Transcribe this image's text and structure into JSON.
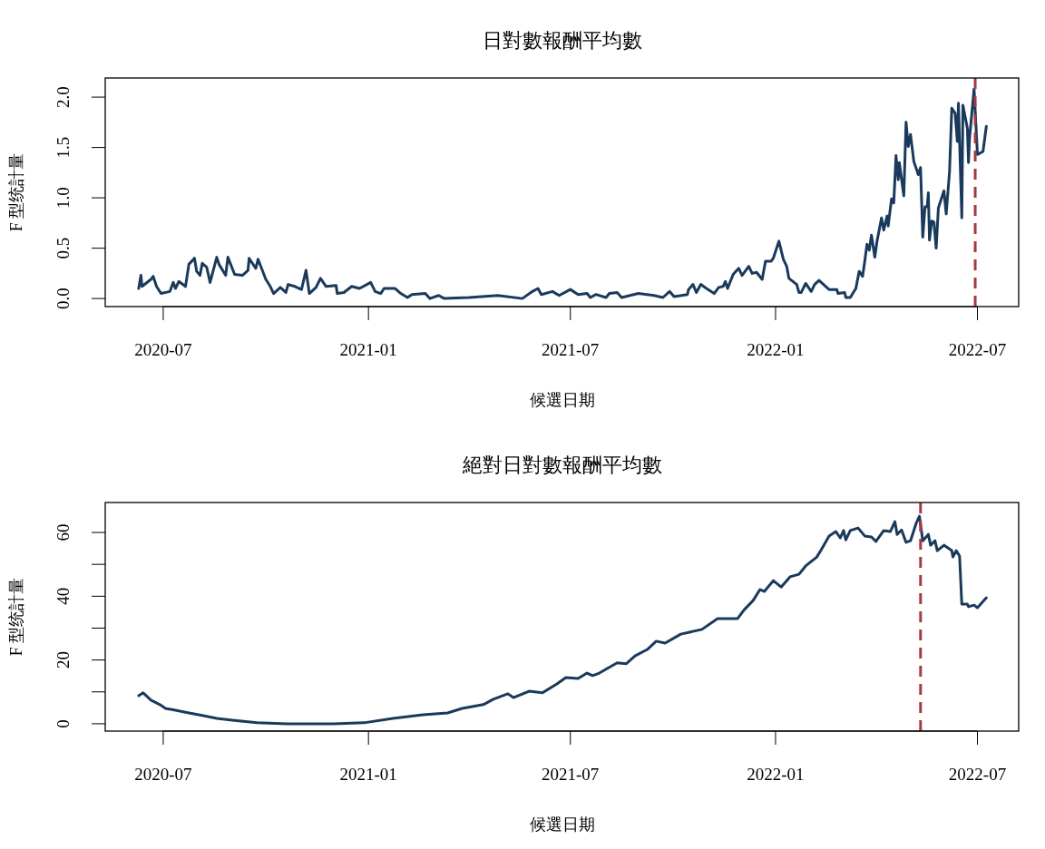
{
  "chart_data": [
    {
      "type": "line",
      "title": "日對數報酬平均數",
      "xlabel": "候選日期",
      "ylabel": "F 型统計量",
      "xlim": [
        "2020-05-10",
        "2022-08-07"
      ],
      "xticks": [
        "2020-07",
        "2021-01",
        "2021-07",
        "2022-01",
        "2022-07"
      ],
      "ylim": [
        -0.08,
        2.19
      ],
      "yticks": [
        {
          "value": 0,
          "label": "0.0"
        },
        {
          "value": 0.5,
          "label": "0.5"
        },
        {
          "value": 1,
          "label": "1.0"
        },
        {
          "value": 1.5,
          "label": "1.5"
        },
        {
          "value": 2,
          "label": "2.0"
        }
      ],
      "grid": false,
      "line_style": "solid",
      "marker": "none",
      "ref_lines": [
        {
          "axis": "x",
          "value": "2022-06-29",
          "color": "#a33a44",
          "line_style": "dashed"
        }
      ],
      "series": [
        {
          "color": "#1a3a5c",
          "x": [
            "2020-06-09",
            "2020-06-11",
            "2020-06-12",
            "2020-06-20",
            "2020-06-22",
            "2020-06-25",
            "2020-06-29",
            "2020-07-07",
            "2020-07-10",
            "2020-07-12",
            "2020-07-15",
            "2020-07-21",
            "2020-07-24",
            "2020-07-29",
            "2020-07-31",
            "2020-08-03",
            "2020-08-05",
            "2020-08-09",
            "2020-08-12",
            "2020-08-18",
            "2020-08-20",
            "2020-08-26",
            "2020-08-28",
            "2020-09-03",
            "2020-09-10",
            "2020-09-15",
            "2020-09-16",
            "2020-09-22",
            "2020-09-24",
            "2020-10-01",
            "2020-10-05",
            "2020-10-08",
            "2020-10-14",
            "2020-10-19",
            "2020-10-21",
            "2020-10-27",
            "2020-11-02",
            "2020-11-06",
            "2020-11-09",
            "2020-11-15",
            "2020-11-19",
            "2020-11-24",
            "2020-12-03",
            "2020-12-04",
            "2020-12-10",
            "2020-12-17",
            "2020-12-24",
            "2021-01-03",
            "2021-01-07",
            "2021-01-12",
            "2021-01-15",
            "2021-01-25",
            "2021-01-30",
            "2021-02-05",
            "2021-02-09",
            "2021-02-21",
            "2021-02-25",
            "2021-03-05",
            "2021-03-10",
            "2021-04-01",
            "2021-04-27",
            "2021-05-19",
            "2021-05-28",
            "2021-06-02",
            "2021-06-05",
            "2021-06-15",
            "2021-06-21",
            "2021-07-01",
            "2021-07-08",
            "2021-07-16",
            "2021-07-19",
            "2021-07-24",
            "2021-08-02",
            "2021-08-05",
            "2021-08-12",
            "2021-08-16",
            "2021-08-31",
            "2021-09-14",
            "2021-09-22",
            "2021-09-28",
            "2021-10-02",
            "2021-10-14",
            "2021-10-15",
            "2021-10-19",
            "2021-10-22",
            "2021-10-26",
            "2021-10-31",
            "2021-11-07",
            "2021-11-11",
            "2021-11-15",
            "2021-11-17",
            "2021-11-19",
            "2021-11-24",
            "2021-11-29",
            "2021-12-02",
            "2021-12-08",
            "2021-12-11",
            "2021-12-15",
            "2021-12-20",
            "2021-12-23",
            "2021-12-28",
            "2021-12-30",
            "2022-01-04",
            "2022-01-08",
            "2022-01-11",
            "2022-01-13",
            "2022-01-20",
            "2022-01-22",
            "2022-01-24",
            "2022-01-28",
            "2022-02-02",
            "2022-02-05",
            "2022-02-09",
            "2022-02-15",
            "2022-02-18",
            "2022-02-25",
            "2022-02-26",
            "2022-03-04",
            "2022-03-05",
            "2022-03-09",
            "2022-03-14",
            "2022-03-17",
            "2022-03-20",
            "2022-03-22",
            "2022-03-24",
            "2022-03-26",
            "2022-03-28",
            "2022-03-31",
            "2022-04-02",
            "2022-04-06",
            "2022-04-08",
            "2022-04-11",
            "2022-04-12",
            "2022-04-15",
            "2022-04-17",
            "2022-04-19",
            "2022-04-21",
            "2022-04-22",
            "2022-04-26",
            "2022-04-28",
            "2022-04-30",
            "2022-05-02",
            "2022-05-05",
            "2022-05-09",
            "2022-05-11",
            "2022-05-13",
            "2022-05-15",
            "2022-05-17",
            "2022-05-18",
            "2022-05-19",
            "2022-05-21",
            "2022-05-23",
            "2022-05-25",
            "2022-05-27",
            "2022-06-01",
            "2022-06-03",
            "2022-06-06",
            "2022-06-08",
            "2022-06-11",
            "2022-06-13",
            "2022-06-14",
            "2022-06-17",
            "2022-06-18",
            "2022-06-22",
            "2022-06-23",
            "2022-06-24",
            "2022-06-28",
            "2022-07-01",
            "2022-07-06",
            "2022-07-09"
          ],
          "values": [
            0.1,
            0.23,
            0.12,
            0.19,
            0.22,
            0.12,
            0.05,
            0.07,
            0.16,
            0.1,
            0.17,
            0.12,
            0.34,
            0.4,
            0.27,
            0.23,
            0.35,
            0.31,
            0.16,
            0.41,
            0.34,
            0.23,
            0.41,
            0.24,
            0.23,
            0.28,
            0.4,
            0.3,
            0.39,
            0.19,
            0.12,
            0.05,
            0.11,
            0.06,
            0.14,
            0.12,
            0.09,
            0.28,
            0.05,
            0.11,
            0.2,
            0.12,
            0.13,
            0.05,
            0.06,
            0.12,
            0.1,
            0.16,
            0.07,
            0.05,
            0.1,
            0.1,
            0.05,
            0.01,
            0.04,
            0.05,
            0.0,
            0.03,
            0.0,
            0.01,
            0.03,
            0.0,
            0.07,
            0.1,
            0.04,
            0.07,
            0.03,
            0.09,
            0.04,
            0.05,
            0.01,
            0.04,
            0.01,
            0.05,
            0.06,
            0.01,
            0.05,
            0.03,
            0.01,
            0.07,
            0.02,
            0.04,
            0.09,
            0.14,
            0.06,
            0.14,
            0.1,
            0.05,
            0.11,
            0.12,
            0.17,
            0.1,
            0.24,
            0.3,
            0.23,
            0.32,
            0.25,
            0.26,
            0.19,
            0.37,
            0.37,
            0.4,
            0.57,
            0.39,
            0.32,
            0.2,
            0.14,
            0.06,
            0.06,
            0.15,
            0.07,
            0.14,
            0.18,
            0.12,
            0.09,
            0.09,
            0.05,
            0.06,
            0.01,
            0.01,
            0.1,
            0.27,
            0.22,
            0.37,
            0.54,
            0.48,
            0.63,
            0.41,
            0.57,
            0.8,
            0.68,
            0.82,
            0.72,
            0.99,
            0.95,
            1.42,
            1.18,
            1.35,
            1.02,
            1.75,
            1.51,
            1.63,
            1.36,
            1.23,
            1.3,
            0.61,
            0.91,
            0.91,
            1.05,
            0.58,
            0.77,
            0.76,
            0.5,
            0.9,
            1.07,
            0.84,
            1.26,
            1.89,
            1.84,
            1.56,
            1.94,
            0.8,
            1.92,
            1.69,
            1.35,
            1.6,
            2.08,
            1.43,
            1.46,
            1.71
          ]
        }
      ]
    },
    {
      "type": "line",
      "title": "絕對日對數報酬平均數",
      "xlabel": "候選日期",
      "ylabel": "F 型统計量",
      "xlim": [
        "2020-05-10",
        "2022-08-07"
      ],
      "xticks": [
        "2020-07",
        "2021-01",
        "2021-07",
        "2022-01",
        "2022-07"
      ],
      "ylim": [
        -2.3,
        69.4
      ],
      "yticks": [
        0,
        {
          "value": 10,
          "label": null
        },
        20,
        {
          "value": 30,
          "label": null
        },
        40,
        {
          "value": 50,
          "label": null
        },
        60
      ],
      "grid": false,
      "line_style": "solid",
      "marker": "none",
      "ref_lines": [
        {
          "axis": "x",
          "value": "2022-05-11",
          "color": "#a33a44",
          "line_style": "dashed"
        }
      ],
      "series": [
        {
          "color": "#1a3a5c",
          "x": [
            "2020-06-09",
            "2020-06-13",
            "2020-06-20",
            "2020-06-28",
            "2020-07-03",
            "2020-07-11",
            "2020-07-24",
            "2020-08-05",
            "2020-08-18",
            "2020-09-01",
            "2020-09-23",
            "2020-10-20",
            "2020-12-01",
            "2020-12-28",
            "2021-01-23",
            "2021-02-19",
            "2021-03-13",
            "2021-03-26",
            "2021-04-14",
            "2021-04-23",
            "2021-05-06",
            "2021-05-11",
            "2021-05-25",
            "2021-06-06",
            "2021-06-19",
            "2021-06-27",
            "2021-07-08",
            "2021-07-16",
            "2021-07-21",
            "2021-07-27",
            "2021-08-12",
            "2021-08-20",
            "2021-08-28",
            "2021-09-08",
            "2021-09-16",
            "2021-09-24",
            "2021-10-08",
            "2021-10-27",
            "2021-11-10",
            "2021-11-18",
            "2021-11-28",
            "2021-12-04",
            "2021-12-12",
            "2021-12-18",
            "2021-12-22",
            "2021-12-30",
            "2022-01-06",
            "2022-01-14",
            "2022-01-22",
            "2022-01-28",
            "2022-02-07",
            "2022-02-11",
            "2022-02-18",
            "2022-02-24",
            "2022-02-28",
            "2022-03-03",
            "2022-03-05",
            "2022-03-09",
            "2022-03-16",
            "2022-03-22",
            "2022-03-28",
            "2022-04-01",
            "2022-04-08",
            "2022-04-14",
            "2022-04-18",
            "2022-04-20",
            "2022-04-24",
            "2022-04-28",
            "2022-05-02",
            "2022-05-07",
            "2022-05-10",
            "2022-05-13",
            "2022-05-18",
            "2022-05-20",
            "2022-05-24",
            "2022-05-26",
            "2022-06-01",
            "2022-06-08",
            "2022-06-09",
            "2022-06-12",
            "2022-06-15",
            "2022-06-17",
            "2022-06-22",
            "2022-06-23",
            "2022-06-28",
            "2022-07-01",
            "2022-07-09"
          ],
          "values": [
            8.8,
            9.7,
            7.4,
            6.0,
            4.8,
            4.3,
            3.4,
            2.6,
            1.7,
            1.1,
            0.3,
            0.0,
            0.0,
            0.3,
            1.7,
            2.8,
            3.4,
            4.8,
            6.0,
            7.7,
            9.4,
            8.2,
            10.2,
            9.7,
            12.5,
            14.5,
            14.2,
            15.9,
            15.1,
            15.9,
            19.1,
            18.8,
            21.3,
            23.3,
            25.9,
            25.3,
            28.1,
            29.6,
            33.0,
            33.0,
            33.0,
            35.8,
            38.7,
            42.1,
            41.5,
            44.9,
            42.9,
            46.1,
            46.9,
            49.5,
            52.3,
            54.6,
            58.9,
            60.3,
            58.3,
            60.6,
            57.7,
            60.6,
            61.4,
            58.9,
            58.6,
            57.2,
            60.6,
            60.3,
            63.4,
            59.4,
            60.8,
            56.9,
            57.4,
            62.8,
            65.1,
            57.4,
            59.4,
            56.0,
            57.4,
            54.3,
            56.0,
            54.3,
            52.3,
            54.3,
            52.6,
            37.5,
            37.5,
            36.7,
            37.2,
            36.4,
            39.5
          ]
        }
      ]
    }
  ]
}
